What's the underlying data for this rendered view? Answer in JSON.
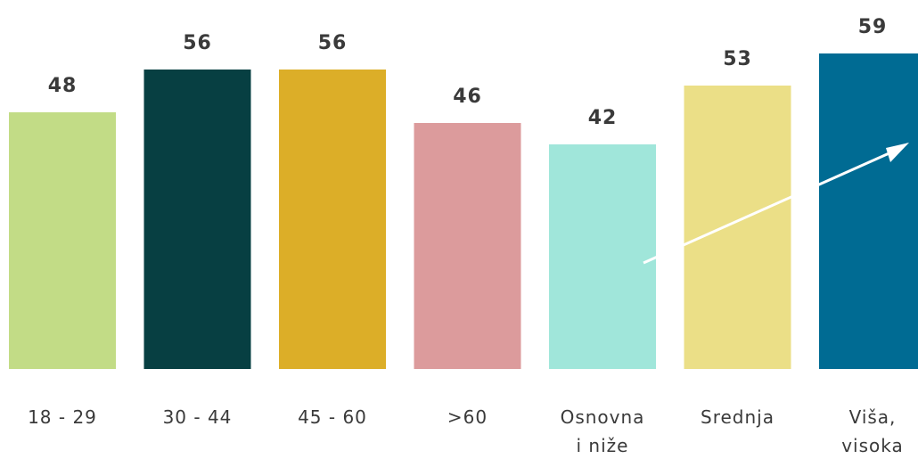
{
  "chart_data": {
    "type": "bar",
    "title": "",
    "xlabel": "",
    "ylabel": "",
    "ylim": [
      0,
      60
    ],
    "grid": false,
    "categories": [
      [
        "18 - 29"
      ],
      [
        "30 - 44"
      ],
      [
        "45 - 60"
      ],
      [
        ">60"
      ],
      [
        "Osnovna",
        "i niže"
      ],
      [
        "Srednja"
      ],
      [
        "Viša,",
        "visoka"
      ]
    ],
    "values": [
      48,
      56,
      56,
      46,
      42,
      53,
      59
    ],
    "colors": [
      "#c2dc86",
      "#073f42",
      "#dcae28",
      "#dc9b9c",
      "#a0e6da",
      "#ebdf87",
      "#006b93"
    ],
    "annotations": [
      {
        "type": "arrow",
        "color": "#ffffff",
        "direction": "rising from Osnovna i niže toward Viša, visoka"
      }
    ]
  }
}
